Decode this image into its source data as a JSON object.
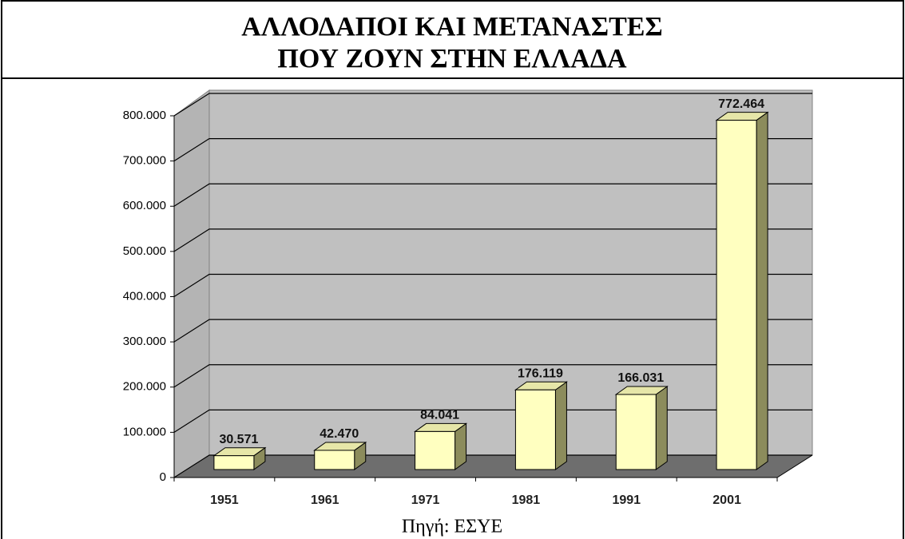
{
  "chart_data": {
    "type": "bar",
    "title": [
      "ΑΛΛΟΔΑΠΟΙ ΚΑΙ ΜΕΤΑΝΑΣΤΕΣ",
      "ΠΟΥ ΖΟΥΝ ΣΤΗΝ ΕΛΛΑΔΑ"
    ],
    "source": "Πηγή: ΕΣΥΕ",
    "categories": [
      "1951",
      "1961",
      "1971",
      "1981",
      "1991",
      "2001"
    ],
    "values": [
      30571,
      42470,
      84041,
      176119,
      166031,
      772464
    ],
    "value_labels": [
      "30.571",
      "42.470",
      "84.041",
      "176.119",
      "166.031",
      "772.464"
    ],
    "color": "#ffffc0",
    "ylim": [
      0,
      800000
    ],
    "yticks": [
      {
        "value": 0,
        "label": "0"
      },
      {
        "value": 100000,
        "label": "100.000"
      },
      {
        "value": 200000,
        "label": "200.000"
      },
      {
        "value": 300000,
        "label": "300.000"
      },
      {
        "value": 400000,
        "label": "400.000"
      },
      {
        "value": 500000,
        "label": "500.000"
      },
      {
        "value": 600000,
        "label": "600.000"
      },
      {
        "value": 700000,
        "label": "700.000"
      },
      {
        "value": 800000,
        "label": "800.000"
      }
    ],
    "grid": true
  }
}
